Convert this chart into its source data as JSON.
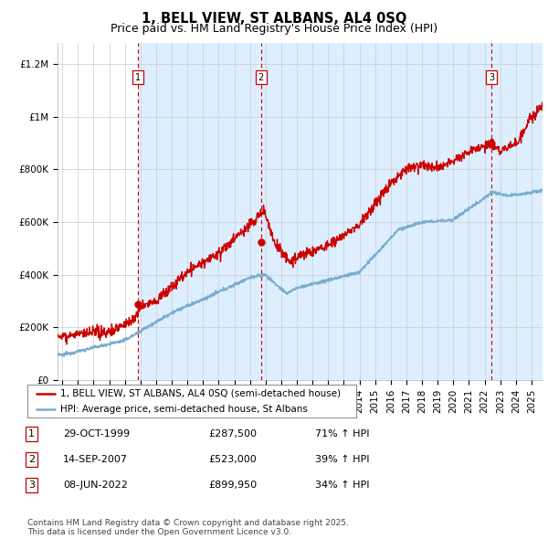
{
  "title": "1, BELL VIEW, ST ALBANS, AL4 0SQ",
  "subtitle": "Price paid vs. HM Land Registry's House Price Index (HPI)",
  "ylabel_ticks": [
    "£0",
    "£200K",
    "£400K",
    "£600K",
    "£800K",
    "£1M",
    "£1.2M"
  ],
  "ytick_vals": [
    0,
    200000,
    400000,
    600000,
    800000,
    1000000,
    1200000
  ],
  "ylim": [
    0,
    1280000
  ],
  "xlim_start": 1994.7,
  "xlim_end": 2025.7,
  "sale_dates": [
    1999.83,
    2007.71,
    2022.44
  ],
  "sale_prices": [
    287500,
    523000,
    899950
  ],
  "sale_labels": [
    "1",
    "2",
    "3"
  ],
  "table_rows": [
    [
      "1",
      "29-OCT-1999",
      "£287,500",
      "71% ↑ HPI"
    ],
    [
      "2",
      "14-SEP-2007",
      "£523,000",
      "39% ↑ HPI"
    ],
    [
      "3",
      "08-JUN-2022",
      "£899,950",
      "34% ↑ HPI"
    ]
  ],
  "legend_line1": "1, BELL VIEW, ST ALBANS, AL4 0SQ (semi-detached house)",
  "legend_line2": "HPI: Average price, semi-detached house, St Albans",
  "footer": "Contains HM Land Registry data © Crown copyright and database right 2025.\nThis data is licensed under the Open Government Licence v3.0.",
  "red_color": "#cc0000",
  "blue_color": "#7aadcf",
  "vline_color": "#cc0000",
  "shade_color": "#ddeeff",
  "background_color": "#ffffff",
  "grid_color": "#cccccc",
  "title_fontsize": 10.5,
  "subtitle_fontsize": 9,
  "tick_fontsize": 7.5,
  "legend_fontsize": 7.5,
  "table_fontsize": 8,
  "footer_fontsize": 6.5
}
